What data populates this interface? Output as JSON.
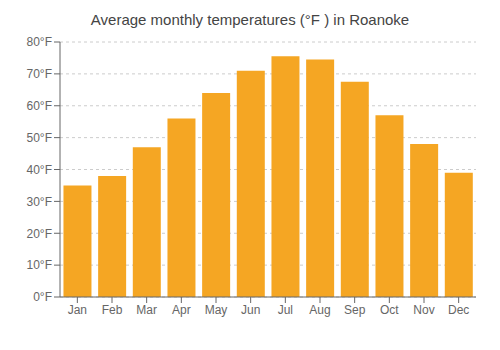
{
  "chart_data": {
    "type": "bar",
    "title": "Average monthly temperatures (°F ) in Roanoke",
    "categories": [
      "Jan",
      "Feb",
      "Mar",
      "Apr",
      "May",
      "Jun",
      "Jul",
      "Aug",
      "Sep",
      "Oct",
      "Nov",
      "Dec"
    ],
    "values": [
      35,
      38,
      47,
      56,
      64,
      71,
      75.5,
      74.5,
      67.5,
      57,
      48,
      39
    ],
    "color": "#F5A623",
    "ylim": [
      0,
      80
    ],
    "yticks": [
      {
        "value": 0,
        "label": "0°F"
      },
      {
        "value": 10,
        "label": "10°F"
      },
      {
        "value": 20,
        "label": "20°F"
      },
      {
        "value": 30,
        "label": "30°F"
      },
      {
        "value": 40,
        "label": "40°F"
      },
      {
        "value": 50,
        "label": "50°F"
      },
      {
        "value": 60,
        "label": "60°F"
      },
      {
        "value": 70,
        "label": "70°F"
      },
      {
        "value": 80,
        "label": "80°F"
      }
    ],
    "grid": true
  }
}
